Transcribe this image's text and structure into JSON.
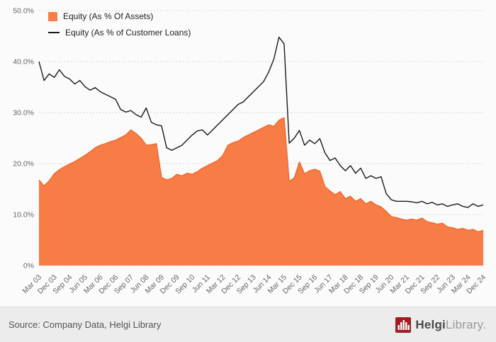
{
  "footer": {
    "source": "Source: Company Data, Helgi Library",
    "logo_primary": "Helgi",
    "logo_secondary": "Library."
  },
  "icons": {
    "helgi_logo": "bar-chart-logo",
    "logo_color": "#a01d21"
  },
  "colors": {
    "background": "#fbfbfb",
    "footer_background": "#ececec",
    "grid": "#cccccc",
    "axis_text": "#666666"
  },
  "chart_data": {
    "type": "area",
    "title": "",
    "xlabel": "",
    "ylabel": "",
    "grid": "horizontal-dotted",
    "legend_position": "top-left",
    "x_count": 88,
    "x_tick_every": 3,
    "x_tick_labels": [
      "Mar 03",
      "Dec 03",
      "Sep 04",
      "Jun 05",
      "Mar 06",
      "Dec 06",
      "Sep 07",
      "Jun 08",
      "Mar 09",
      "Dec 09",
      "Sep 10",
      "Jun 11",
      "Mar 12",
      "Dec 12",
      "Sep 13",
      "Jun 14",
      "Mar 15",
      "Dec 15",
      "Sep 16",
      "Jun 17",
      "Mar 18",
      "Dec 18",
      "Sep 19",
      "Jun 20",
      "Mar 21",
      "Dec 21",
      "Sep 22",
      "Jun 23",
      "Mar 24",
      "Dec 24"
    ],
    "ylim": [
      0,
      50
    ],
    "y_tick_values": [
      0,
      10,
      20,
      30,
      40,
      50
    ],
    "y_tick_labels": [
      "0%",
      "10.0%",
      "20.0%",
      "30.0%",
      "40.0%",
      "50.0%"
    ],
    "series": [
      {
        "name": "Equity (As % Of Assets)",
        "type": "area",
        "color": "#f87c45",
        "edge_color": "#ee6a2f",
        "values": [
          16.8,
          15.6,
          16.6,
          18.0,
          18.8,
          19.4,
          19.9,
          20.4,
          21.0,
          21.6,
          22.3,
          23.1,
          23.6,
          23.9,
          24.3,
          24.6,
          25.1,
          25.6,
          26.6,
          25.9,
          25.0,
          23.6,
          23.7,
          23.9,
          17.3,
          16.8,
          17.1,
          17.9,
          17.6,
          18.1,
          17.9,
          18.4,
          19.1,
          19.6,
          20.1,
          20.6,
          21.6,
          23.6,
          24.1,
          24.4,
          25.1,
          25.6,
          26.1,
          26.6,
          27.1,
          27.6,
          27.3,
          28.5,
          29.0,
          16.5,
          17.2,
          20.3,
          18.0,
          18.6,
          18.9,
          18.5,
          15.5,
          14.6,
          13.9,
          14.5,
          13.1,
          13.6,
          12.6,
          13.1,
          12.1,
          12.6,
          11.9,
          11.5,
          10.6,
          9.6,
          9.4,
          9.1,
          8.9,
          9.1,
          8.9,
          9.3,
          8.6,
          8.4,
          8.1,
          8.3,
          7.6,
          7.4,
          7.1,
          7.3,
          6.9,
          7.1,
          6.6,
          6.9
        ]
      },
      {
        "name": "Equity (As % of Customer Loans)",
        "type": "line",
        "color": "#1a1a1a",
        "values": [
          40.0,
          36.3,
          37.6,
          36.9,
          38.4,
          37.1,
          36.6,
          35.6,
          36.3,
          35.1,
          34.4,
          34.9,
          34.1,
          33.6,
          33.1,
          32.6,
          30.6,
          30.1,
          30.4,
          29.6,
          29.1,
          30.9,
          28.1,
          27.6,
          27.4,
          23.1,
          22.6,
          23.1,
          23.6,
          24.6,
          25.6,
          26.4,
          26.6,
          25.6,
          26.6,
          27.6,
          28.6,
          29.6,
          30.6,
          31.6,
          32.1,
          33.1,
          34.1,
          35.1,
          36.1,
          38.0,
          40.5,
          44.8,
          43.5,
          24.0,
          25.0,
          26.5,
          23.6,
          24.6,
          23.9,
          24.9,
          22.1,
          20.6,
          21.1,
          19.6,
          18.6,
          19.6,
          18.1,
          19.1,
          17.1,
          17.6,
          17.1,
          17.4,
          14.1,
          12.9,
          12.6,
          12.6,
          12.6,
          12.5,
          12.3,
          12.6,
          12.1,
          12.4,
          11.9,
          12.1,
          11.6,
          11.9,
          12.1,
          11.6,
          11.4,
          12.1,
          11.6,
          11.9
        ]
      }
    ]
  }
}
